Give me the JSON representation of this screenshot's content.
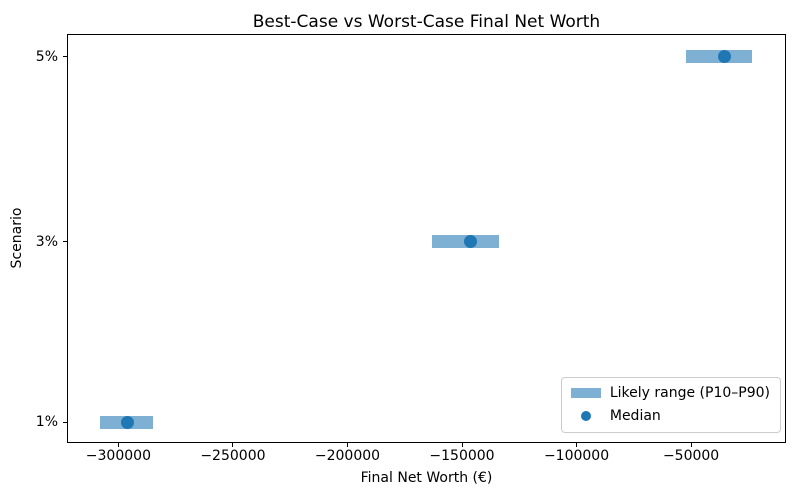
{
  "chart_data": {
    "type": "range_bar",
    "title": "Best-Case vs Worst-Case Final Net Worth",
    "xlabel": "Final Net Worth (€)",
    "ylabel": "Scenario",
    "categories": [
      "5%",
      "3%",
      "1%"
    ],
    "series": [
      {
        "scenario": "5%",
        "p10": -52000,
        "median": -35500,
        "p90": -23500
      },
      {
        "scenario": "3%",
        "p10": -163000,
        "median": -146500,
        "p90": -134000
      },
      {
        "scenario": "1%",
        "p10": -308000,
        "median": -296000,
        "p90": -285000
      }
    ],
    "xlim": [
      -322000,
      -9000
    ],
    "x_ticks": [
      -300000,
      -250000,
      -200000,
      -150000,
      -100000,
      -50000
    ],
    "grid": false,
    "legend": {
      "position": "lower right",
      "items": [
        {
          "label": "Likely range (P10–P90)",
          "swatch": "range-bar"
        },
        {
          "label": "Median",
          "swatch": "median-dot"
        }
      ]
    },
    "colors": {
      "range_bar": "#7EB0D4",
      "median_dot": "#1F77B4",
      "spine": "#000000",
      "text": "#000000",
      "legend_border": "#CCCCCC"
    }
  }
}
